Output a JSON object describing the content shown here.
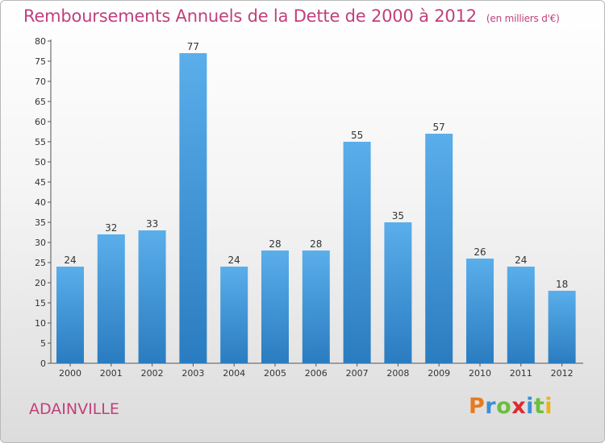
{
  "header": {
    "title": "Remboursements Annuels de la Dette de 2000 à 2012",
    "unit": "(en milliers d'€)"
  },
  "footer": {
    "commune": "ADAINVILLE",
    "logo": "Proxiti"
  },
  "colors": {
    "title": "#c0407c",
    "bar_top": "#5aaeea",
    "bar_bottom": "#2a7cc0",
    "logo_letters": [
      "#e87a1e",
      "#3c8fd4",
      "#6abf3c",
      "#e0282e",
      "#3c8fd4",
      "#6abf3c",
      "#e8b41e"
    ]
  },
  "chart_data": {
    "type": "bar",
    "title": "Remboursements Annuels de la Dette de 2000 à 2012",
    "categories": [
      "2000",
      "2001",
      "2002",
      "2003",
      "2004",
      "2005",
      "2006",
      "2007",
      "2008",
      "2009",
      "2010",
      "2011",
      "2012"
    ],
    "values": [
      24,
      32,
      33,
      77,
      24,
      28,
      28,
      55,
      35,
      57,
      26,
      24,
      18
    ],
    "ylim": [
      0,
      80
    ],
    "yticks": [
      0,
      5,
      10,
      15,
      20,
      25,
      30,
      35,
      40,
      45,
      50,
      55,
      60,
      65,
      70,
      75,
      80
    ],
    "grid": false,
    "data_labels": true
  }
}
